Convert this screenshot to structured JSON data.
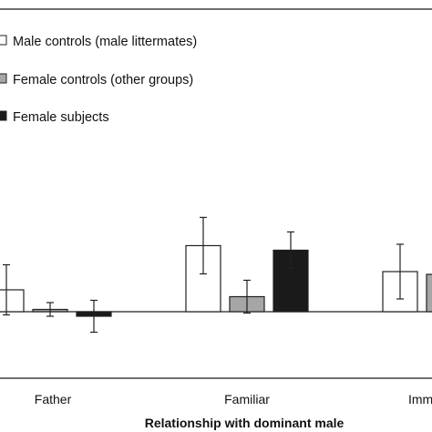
{
  "chart_data": {
    "type": "bar",
    "title": "",
    "xlabel": "Relationship with dominant male",
    "ylabel": "",
    "categories": [
      "Father",
      "Familiar",
      "Imm"
    ],
    "ylim": [
      -1.0,
      6.0
    ],
    "baseline": 0,
    "grid": false,
    "legend_position": "top-left",
    "series": [
      {
        "name": "Male controls (male littermates)",
        "color": "#ffffff",
        "values": [
          0.48,
          1.45,
          0.88
        ],
        "errors": [
          0.55,
          0.62,
          0.6
        ]
      },
      {
        "name": "Female controls (other groups)",
        "color": "#a6a6a6",
        "values": [
          0.05,
          0.33,
          0.82
        ],
        "errors": [
          0.15,
          0.36,
          0.3
        ]
      },
      {
        "name": "Female subjects",
        "color": "#1a1a1a",
        "values": [
          -0.1,
          1.35,
          null
        ],
        "errors": [
          0.35,
          0.4,
          null
        ]
      }
    ]
  }
}
